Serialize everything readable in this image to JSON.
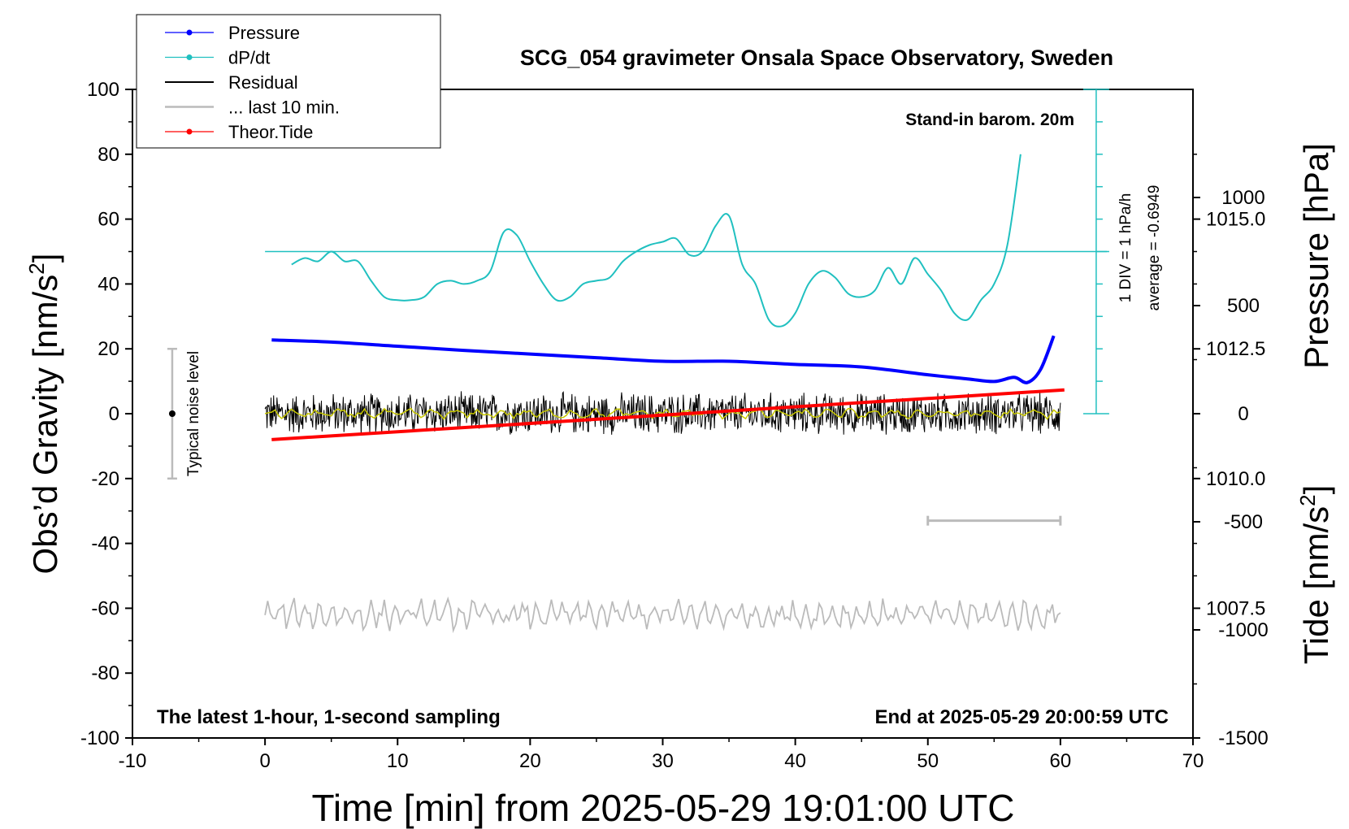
{
  "chart_data": {
    "type": "line",
    "title": "SCG_054 gravimeter Onsala Space Observatory, Sweden",
    "subtitle_right": "Stand-in barom. 20m",
    "footer_left": "The latest 1-hour, 1-second sampling",
    "footer_right": "End at 2025-05-29 20:00:59 UTC",
    "xlabel": "Time [min] from 2025-05-29 19:01:00 UTC",
    "ylabel_left": "Obs’d Gravity [nm/s",
    "ylabel_left_sup": "2",
    "ylabel_left_end": "]",
    "ylabel_right_pressure": "Pressure [hPa]",
    "ylabel_right_tide": "Tide [nm/s",
    "ylabel_right_tide_sup": "2",
    "ylabel_right_tide_end": "]",
    "xlim": [
      -10,
      70
    ],
    "ylim_gravity": [
      -100,
      100
    ],
    "ylim_pressure": [
      1005.0,
      1017.5
    ],
    "ylim_tide": [
      -1500,
      1500
    ],
    "xticks": [
      "-10",
      "0",
      "10",
      "20",
      "30",
      "40",
      "50",
      "60",
      "70"
    ],
    "yticks_left": [
      "100",
      "80",
      "60",
      "40",
      "20",
      "0",
      "-20",
      "-40",
      "-60",
      "-80",
      "-100"
    ],
    "yticks_pressure": [
      "1015.0",
      "1012.5",
      "1010.0",
      "1007.5"
    ],
    "yticks_tide": [
      "1000",
      "500",
      "0",
      "-500",
      "-1000",
      "-1500"
    ],
    "dpdt_scale_label": "1 DIV = 1 hPa/h",
    "dpdt_average_label": "average = -0.6949",
    "noise_label": "Typical noise level",
    "noise_range": [
      -20,
      20
    ],
    "last10_bar": [
      50,
      60
    ],
    "legend": {
      "position": "top-left",
      "items": [
        {
          "label": "Pressure",
          "color": "#0000ff"
        },
        {
          "label": "dP/dt",
          "color": "#20c0c0"
        },
        {
          "label": "Residual",
          "color": "#000000"
        },
        {
          "label": "... last 10 min.",
          "color": "#bbbbbb"
        },
        {
          "label": "Theor.Tide",
          "color": "#ff0000"
        }
      ]
    },
    "series": [
      {
        "name": "Pressure",
        "color": "#0000ff",
        "axis": "pressure",
        "x": [
          0.5,
          5,
          10,
          15,
          20,
          25,
          30,
          35,
          40,
          45,
          50,
          53,
          55,
          56.5,
          57.5,
          58.5,
          59.5
        ],
        "y": [
          1012.67,
          1012.63,
          1012.55,
          1012.47,
          1012.4,
          1012.33,
          1012.26,
          1012.26,
          1012.2,
          1012.15,
          1012.0,
          1011.92,
          1011.87,
          1011.95,
          1011.85,
          1012.1,
          1012.75
        ]
      },
      {
        "name": "dP/dt",
        "color": "#20c0c0",
        "axis": "gravity",
        "x": [
          2,
          3,
          4,
          5,
          6,
          7,
          8,
          9,
          10,
          11,
          12,
          13,
          14,
          15,
          16,
          17,
          18,
          19,
          20,
          21,
          22,
          23,
          24,
          25,
          26,
          27,
          28,
          29,
          30,
          31,
          32,
          33,
          34,
          35,
          36,
          37,
          38,
          39,
          40,
          41,
          42,
          43,
          44,
          45,
          46,
          47,
          48,
          49,
          50,
          51,
          52,
          53,
          54,
          55,
          56,
          57
        ],
        "y": [
          46,
          48,
          47,
          50,
          47,
          47,
          41,
          36,
          35,
          35,
          36,
          40,
          41,
          40,
          41,
          44,
          56,
          55,
          47,
          40,
          35,
          36,
          40,
          41,
          42,
          47,
          50,
          52,
          53,
          54,
          49,
          50,
          58,
          61,
          46,
          40,
          29,
          27,
          31,
          40,
          44,
          42,
          37,
          36,
          38,
          45,
          40,
          48,
          43,
          38,
          31,
          29,
          35,
          40,
          52,
          80
        ]
      },
      {
        "name": "Residual",
        "color": "#000000",
        "axis": "gravity",
        "mean": 0,
        "amplitude": 6
      },
      {
        "name": "... last 10 min.",
        "color": "#bbbbbb",
        "axis": "gravity",
        "mean": -62,
        "amplitude": 4
      },
      {
        "name": "Theor.Tide",
        "color": "#ff0000",
        "axis": "tide",
        "x": [
          0.5,
          60.3
        ],
        "y": [
          -120,
          110
        ]
      }
    ],
    "dpdt_average_level": 50,
    "grid": false
  }
}
